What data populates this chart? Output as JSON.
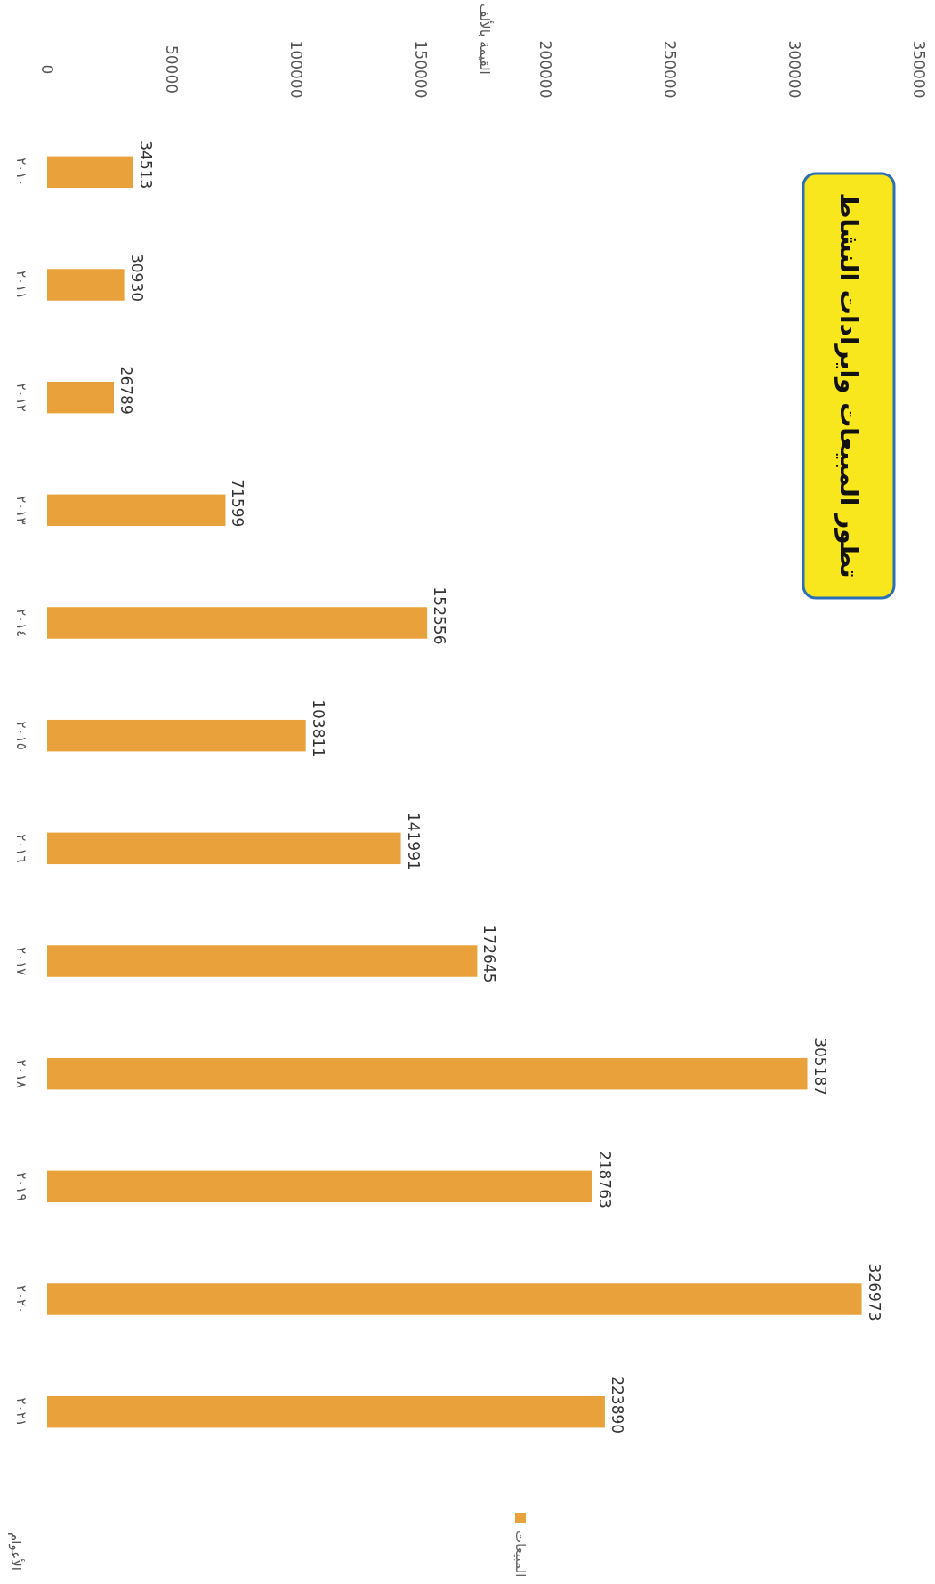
{
  "chart_data": {
    "type": "bar",
    "orientation": "horizontal",
    "title": "تطور المبيعات وايرادات النشاط",
    "annotations": [
      "القيمة بالألف",
      "الأعوام"
    ],
    "categories": [
      "٢٠١٠",
      "٢٠١١",
      "٢٠١٢",
      "٢٠١٣",
      "٢٠١٤",
      "٢٠١٥",
      "٢٠١٦",
      "٢٠١٧",
      "٢٠١٨",
      "٢٠١٩",
      "٢٠٢٠",
      "٢٠٢١"
    ],
    "series": [
      {
        "name": "المبيعات",
        "color": "#e9a23b",
        "values": [
          34513,
          30930,
          26789,
          71599,
          152556,
          103811,
          141991,
          172645,
          305187,
          218763,
          326973,
          223890
        ]
      }
    ],
    "xlim": [
      0,
      350000
    ],
    "xticks": [
      0,
      50000,
      100000,
      150000,
      200000,
      250000,
      300000,
      350000
    ],
    "data_labels": true,
    "legend": "bottom",
    "grid": false
  }
}
